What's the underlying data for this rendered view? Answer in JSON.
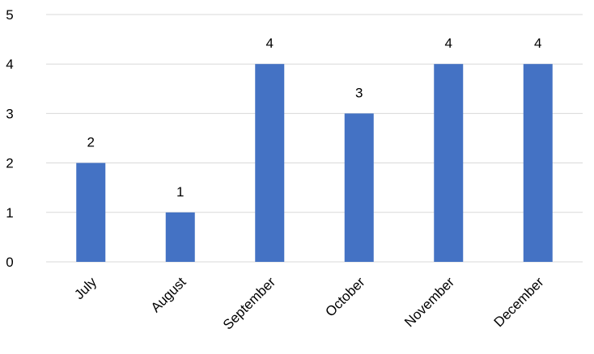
{
  "chart_data": {
    "type": "bar",
    "categories": [
      "July",
      "August",
      "September",
      "October",
      "November",
      "December"
    ],
    "values": [
      2,
      1,
      4,
      3,
      4,
      4
    ],
    "ylim": [
      0,
      5
    ],
    "yticks": [
      0,
      1,
      2,
      3,
      4,
      5
    ],
    "grid": true,
    "data_labels": true,
    "bar_color": "#4472c4",
    "grid_color": "#d9d9d9",
    "title": "",
    "xlabel": "",
    "ylabel": ""
  }
}
